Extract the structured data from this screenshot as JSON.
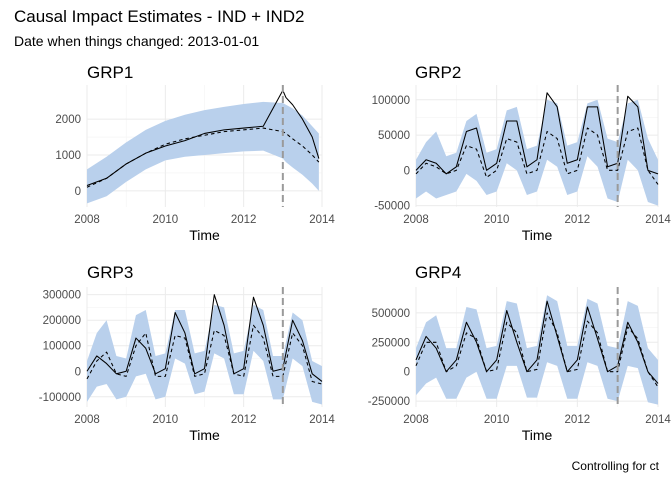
{
  "title": "Causal Impact Estimates - IND + IND2",
  "subtitle": "Date when things changed: 2013-01-01",
  "caption": "Controlling for ct",
  "colors": {
    "band": "#b9d0ec",
    "actual": "#000000",
    "predicted": "#000000",
    "event_line": "#9a9a9a",
    "grid": "#ebebeb",
    "tick_label": "#4d4d4d"
  },
  "chart_data": [
    {
      "type": "line",
      "title": "GRP1",
      "xlabel": "Time",
      "ylabel": "",
      "xlim": [
        2008,
        2014
      ],
      "ylim": [
        -450,
        2950
      ],
      "xticks": [
        2008,
        2010,
        2012,
        2014
      ],
      "yticks": [
        0,
        1000,
        2000
      ],
      "yticklabels": [
        "0",
        "1000",
        "2000"
      ],
      "event_x": 2013.0,
      "grid": true,
      "x": [
        2008.0,
        2008.5,
        2009.0,
        2009.5,
        2010.0,
        2010.5,
        2011.0,
        2011.5,
        2012.0,
        2012.5,
        2013.0,
        2013.08,
        2013.25,
        2013.5,
        2013.75,
        2013.92
      ],
      "series": [
        {
          "role": "upper",
          "values": [
            600,
            950,
            1350,
            1700,
            1950,
            2120,
            2250,
            2340,
            2420,
            2480,
            2450,
            2400,
            2300,
            2100,
            1800,
            1600
          ]
        },
        {
          "role": "lower",
          "values": [
            -350,
            -150,
            250,
            600,
            850,
            950,
            1000,
            1050,
            1100,
            1120,
            900,
            800,
            650,
            450,
            200,
            0
          ]
        },
        {
          "role": "predicted",
          "values": [
            100,
            350,
            750,
            1050,
            1300,
            1450,
            1550,
            1650,
            1700,
            1750,
            1650,
            1600,
            1450,
            1250,
            1000,
            800
          ]
        },
        {
          "role": "actual",
          "values": [
            150,
            350,
            750,
            1050,
            1250,
            1400,
            1600,
            1700,
            1750,
            1800,
            2800,
            2600,
            2400,
            2000,
            1500,
            900
          ]
        }
      ]
    },
    {
      "type": "line",
      "title": "GRP2",
      "xlabel": "Time",
      "ylabel": "",
      "xlim": [
        2008,
        2014
      ],
      "ylim": [
        -52000,
        121000
      ],
      "xticks": [
        2008,
        2010,
        2012,
        2014
      ],
      "yticks": [
        -50000,
        0,
        50000,
        100000
      ],
      "yticklabels": [
        "-50000",
        "0",
        "50000",
        "100000"
      ],
      "event_x": 2013.0,
      "grid": true,
      "x": [
        2008.0,
        2008.25,
        2008.5,
        2008.75,
        2009.0,
        2009.25,
        2009.5,
        2009.75,
        2010.0,
        2010.25,
        2010.5,
        2010.75,
        2011.0,
        2011.25,
        2011.5,
        2011.75,
        2012.0,
        2012.25,
        2012.5,
        2012.75,
        2013.0,
        2013.25,
        2013.5,
        2013.75,
        2014.0
      ],
      "series": [
        {
          "role": "upper",
          "values": [
            15000,
            40000,
            55000,
            20000,
            25000,
            70000,
            80000,
            25000,
            30000,
            85000,
            90000,
            30000,
            35000,
            100000,
            95000,
            35000,
            40000,
            95000,
            100000,
            45000,
            40000,
            95000,
            100000,
            45000,
            15000
          ]
        },
        {
          "role": "lower",
          "values": [
            -40000,
            -30000,
            -40000,
            -35000,
            -30000,
            -5000,
            -15000,
            -35000,
            -30000,
            10000,
            0,
            -35000,
            -30000,
            15000,
            5000,
            -35000,
            -30000,
            20000,
            5000,
            -40000,
            -45000,
            15000,
            0,
            -45000,
            -50000
          ]
        },
        {
          "role": "predicted",
          "values": [
            -5000,
            10000,
            5000,
            -5000,
            0,
            35000,
            30000,
            -10000,
            0,
            45000,
            40000,
            -5000,
            0,
            55000,
            45000,
            -5000,
            0,
            60000,
            50000,
            0,
            0,
            55000,
            60000,
            0,
            -20000
          ]
        },
        {
          "role": "actual",
          "values": [
            0,
            15000,
            10000,
            -5000,
            5000,
            55000,
            60000,
            0,
            10000,
            70000,
            70000,
            5000,
            15000,
            110000,
            90000,
            10000,
            15000,
            90000,
            90000,
            5000,
            10000,
            105000,
            90000,
            0,
            -5000
          ]
        }
      ]
    },
    {
      "type": "line",
      "title": "GRP3",
      "xlabel": "Time",
      "ylabel": "",
      "xlim": [
        2008,
        2014
      ],
      "ylim": [
        -140000,
        330000
      ],
      "xticks": [
        2008,
        2010,
        2012,
        2014
      ],
      "yticks": [
        -100000,
        0,
        100000,
        200000,
        300000
      ],
      "yticklabels": [
        "-100000",
        "0",
        "100000",
        "200000",
        "300000"
      ],
      "event_x": 2013.0,
      "grid": true,
      "x": [
        2008.0,
        2008.25,
        2008.5,
        2008.75,
        2009.0,
        2009.25,
        2009.5,
        2009.75,
        2010.0,
        2010.25,
        2010.5,
        2010.75,
        2011.0,
        2011.25,
        2011.5,
        2011.75,
        2012.0,
        2012.25,
        2012.5,
        2012.75,
        2013.0,
        2013.25,
        2013.5,
        2013.75,
        2014.0
      ],
      "series": [
        {
          "role": "upper",
          "values": [
            40000,
            150000,
            200000,
            60000,
            50000,
            220000,
            240000,
            60000,
            70000,
            240000,
            240000,
            70000,
            80000,
            260000,
            250000,
            70000,
            80000,
            260000,
            240000,
            60000,
            60000,
            230000,
            200000,
            40000,
            20000
          ]
        },
        {
          "role": "lower",
          "values": [
            -120000,
            -60000,
            -50000,
            -110000,
            -100000,
            -20000,
            -10000,
            -110000,
            -100000,
            50000,
            30000,
            -90000,
            -80000,
            70000,
            50000,
            -90000,
            -90000,
            80000,
            40000,
            -110000,
            -110000,
            50000,
            20000,
            -120000,
            -130000
          ]
        },
        {
          "role": "predicted",
          "values": [
            -30000,
            40000,
            75000,
            -10000,
            -20000,
            100000,
            150000,
            -20000,
            -20000,
            140000,
            130000,
            -20000,
            -10000,
            160000,
            140000,
            -10000,
            -20000,
            180000,
            130000,
            -20000,
            -20000,
            150000,
            100000,
            -40000,
            -50000
          ]
        },
        {
          "role": "actual",
          "values": [
            0,
            60000,
            30000,
            -10000,
            0,
            130000,
            90000,
            -10000,
            10000,
            230000,
            150000,
            -10000,
            10000,
            300000,
            180000,
            -10000,
            10000,
            290000,
            180000,
            0,
            10000,
            200000,
            120000,
            -10000,
            -40000
          ]
        }
      ]
    },
    {
      "type": "line",
      "title": "GRP4",
      "xlabel": "Time",
      "ylabel": "",
      "xlim": [
        2008,
        2014
      ],
      "ylim": [
        -300000,
        720000
      ],
      "xticks": [
        2008,
        2010,
        2012,
        2014
      ],
      "yticks": [
        -250000,
        0,
        250000,
        500000
      ],
      "yticklabels": [
        "-250000",
        "0",
        "250000",
        "500000"
      ],
      "event_x": 2013.0,
      "grid": true,
      "x": [
        2008.0,
        2008.25,
        2008.5,
        2008.75,
        2009.0,
        2009.25,
        2009.5,
        2009.75,
        2010.0,
        2010.25,
        2010.5,
        2010.75,
        2011.0,
        2011.25,
        2011.5,
        2011.75,
        2012.0,
        2012.25,
        2012.5,
        2012.75,
        2013.0,
        2013.25,
        2013.5,
        2013.75,
        2014.0
      ],
      "series": [
        {
          "role": "upper",
          "values": [
            200000,
            420000,
            480000,
            200000,
            200000,
            550000,
            530000,
            200000,
            220000,
            600000,
            580000,
            200000,
            220000,
            650000,
            600000,
            220000,
            220000,
            620000,
            580000,
            220000,
            200000,
            600000,
            560000,
            200000,
            100000
          ]
        },
        {
          "role": "lower",
          "values": [
            -200000,
            -100000,
            -50000,
            -230000,
            -230000,
            -50000,
            0,
            -230000,
            -230000,
            50000,
            50000,
            -220000,
            -220000,
            80000,
            50000,
            -230000,
            -230000,
            80000,
            50000,
            -230000,
            -250000,
            50000,
            30000,
            -260000,
            -280000
          ]
        },
        {
          "role": "predicted",
          "values": [
            50000,
            250000,
            250000,
            0,
            50000,
            330000,
            280000,
            0,
            20000,
            420000,
            330000,
            0,
            20000,
            500000,
            330000,
            0,
            20000,
            430000,
            330000,
            0,
            0,
            380000,
            280000,
            0,
            -130000
          ]
        },
        {
          "role": "actual",
          "values": [
            100000,
            300000,
            200000,
            0,
            100000,
            420000,
            250000,
            0,
            100000,
            520000,
            250000,
            0,
            100000,
            600000,
            300000,
            0,
            100000,
            550000,
            280000,
            0,
            50000,
            420000,
            250000,
            0,
            -100000
          ]
        }
      ]
    }
  ]
}
